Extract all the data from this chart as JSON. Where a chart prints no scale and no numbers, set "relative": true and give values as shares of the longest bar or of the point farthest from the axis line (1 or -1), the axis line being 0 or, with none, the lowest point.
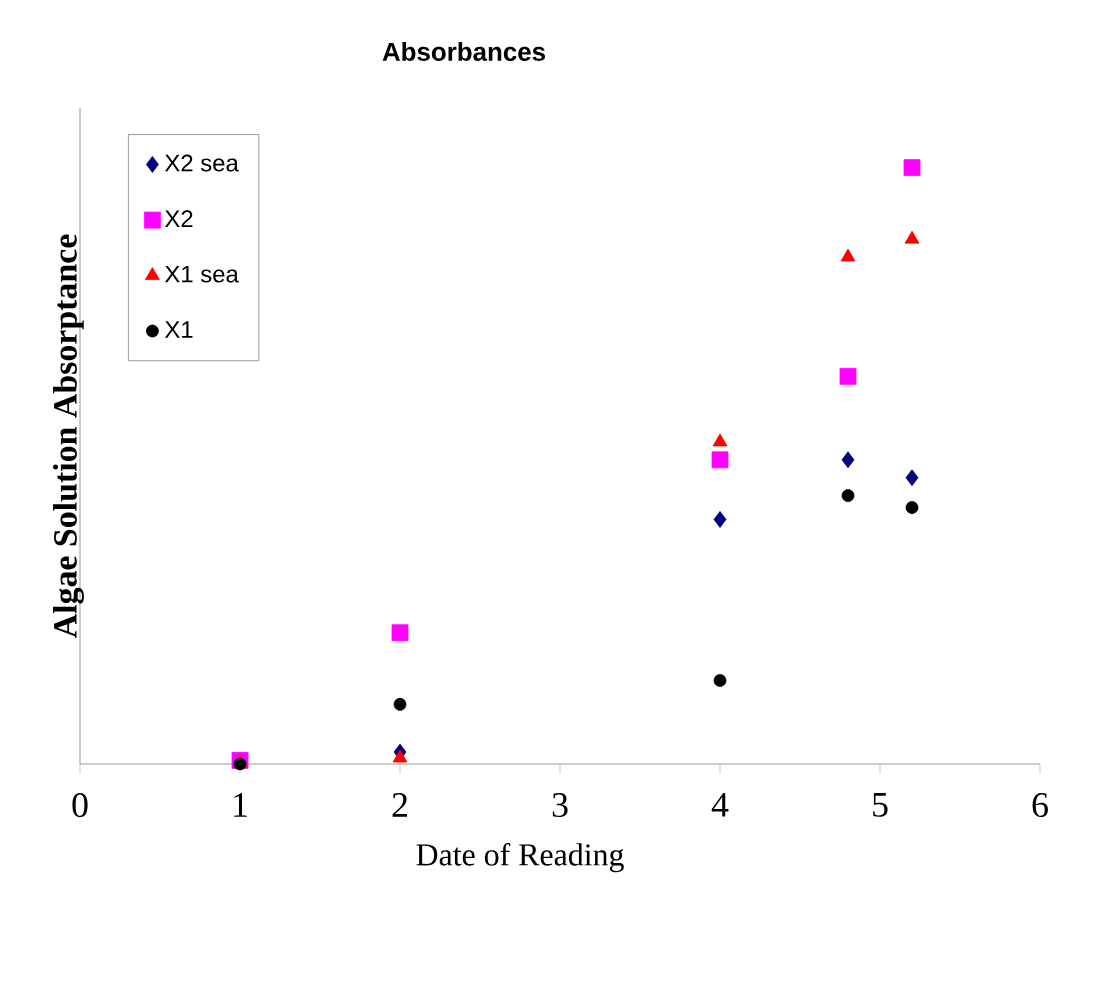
{
  "chart_data": {
    "type": "scatter",
    "title": "Absorbances",
    "xlabel": "Date of Reading",
    "ylabel": "Algae Solution Absorptance",
    "relative": true,
    "xlim": [
      0,
      6
    ],
    "xticks": [
      0,
      1,
      2,
      3,
      4,
      5,
      6
    ],
    "tick_labels": "x",
    "legend": "top left",
    "x": [
      1,
      2,
      4,
      4.8,
      5.2
    ],
    "series": [
      {
        "name": "X2 sea",
        "color": "#000080",
        "marker": "diamond",
        "values": [
          null,
          0.02,
          0.41,
          0.51,
          0.48
        ]
      },
      {
        "name": "X2",
        "color": "#ff00ff",
        "marker": "square",
        "values": [
          0.006,
          0.22,
          0.51,
          0.65,
          1
        ]
      },
      {
        "name": "X1 sea",
        "color": "#ff0000",
        "marker": "triangle",
        "values": [
          0,
          0.01,
          0.54,
          0.85,
          0.88
        ]
      },
      {
        "name": "X1",
        "color": "#000000",
        "marker": "circle",
        "values": [
          0,
          0.1,
          0.14,
          0.45,
          0.43
        ]
      }
    ]
  }
}
